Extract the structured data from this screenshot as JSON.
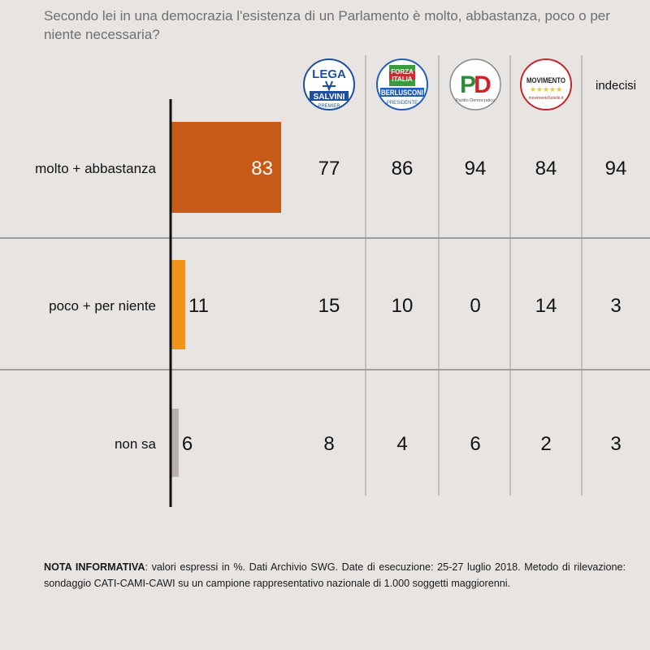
{
  "title": "Secondo lei in una democrazia l'esistenza di un Parlamento è  molto, abbastanza, poco o per niente necessaria?",
  "chart_data": {
    "type": "bar",
    "orientation": "horizontal",
    "categories": [
      "molto + abbastanza",
      "poco + per niente",
      "non sa"
    ],
    "values": [
      83,
      11,
      6
    ],
    "bar_colors": [
      "#c85a17",
      "#f2941b",
      "#b8b0a9"
    ],
    "xlim": [
      0,
      100
    ],
    "table_columns": [
      {
        "name": "Lega - Salvini Premier",
        "logo_text": [
          "LEGA",
          "SALVINI",
          "PREMIER"
        ],
        "values": [
          77,
          15,
          8
        ]
      },
      {
        "name": "Forza Italia - Berlusconi Presidente",
        "logo_text": [
          "FORZA",
          "ITALIA",
          "BERLUSCONI",
          "PRESIDENTE"
        ],
        "values": [
          86,
          10,
          4
        ]
      },
      {
        "name": "Partito Democratico",
        "logo_text": [
          "PD",
          "Partito Democratico"
        ],
        "values": [
          94,
          0,
          6
        ]
      },
      {
        "name": "Movimento 5 Stelle",
        "logo_text": [
          "MOVIMENTO",
          "★★★★★",
          "movimento5stelle.it"
        ],
        "values": [
          84,
          14,
          2
        ]
      },
      {
        "name": "indecisi",
        "header_label": "indecisi",
        "values": [
          94,
          3,
          3
        ]
      }
    ]
  },
  "note": {
    "label": "NOTA INFORMATIVA",
    "text": ": valori espressi in %. Dati Archivio SWG. Date di esecuzione: 25-27 luglio 2018. Metodo di rilevazione: sondaggio CATI-CAMI-CAWI su un campione rappresentativo nazionale di 1.000 soggetti maggiorenni."
  },
  "colors": {
    "background": "#e8e4e1",
    "axis": "#111111",
    "separator": "#a0a0a0",
    "lega_blue": "#1d4fa0",
    "forza_blue": "#1f5fb8",
    "pd_green": "#2e8b3a",
    "pd_red": "#d42027",
    "m5s_red": "#c0282d",
    "m5s_yellow": "#f5c518"
  }
}
